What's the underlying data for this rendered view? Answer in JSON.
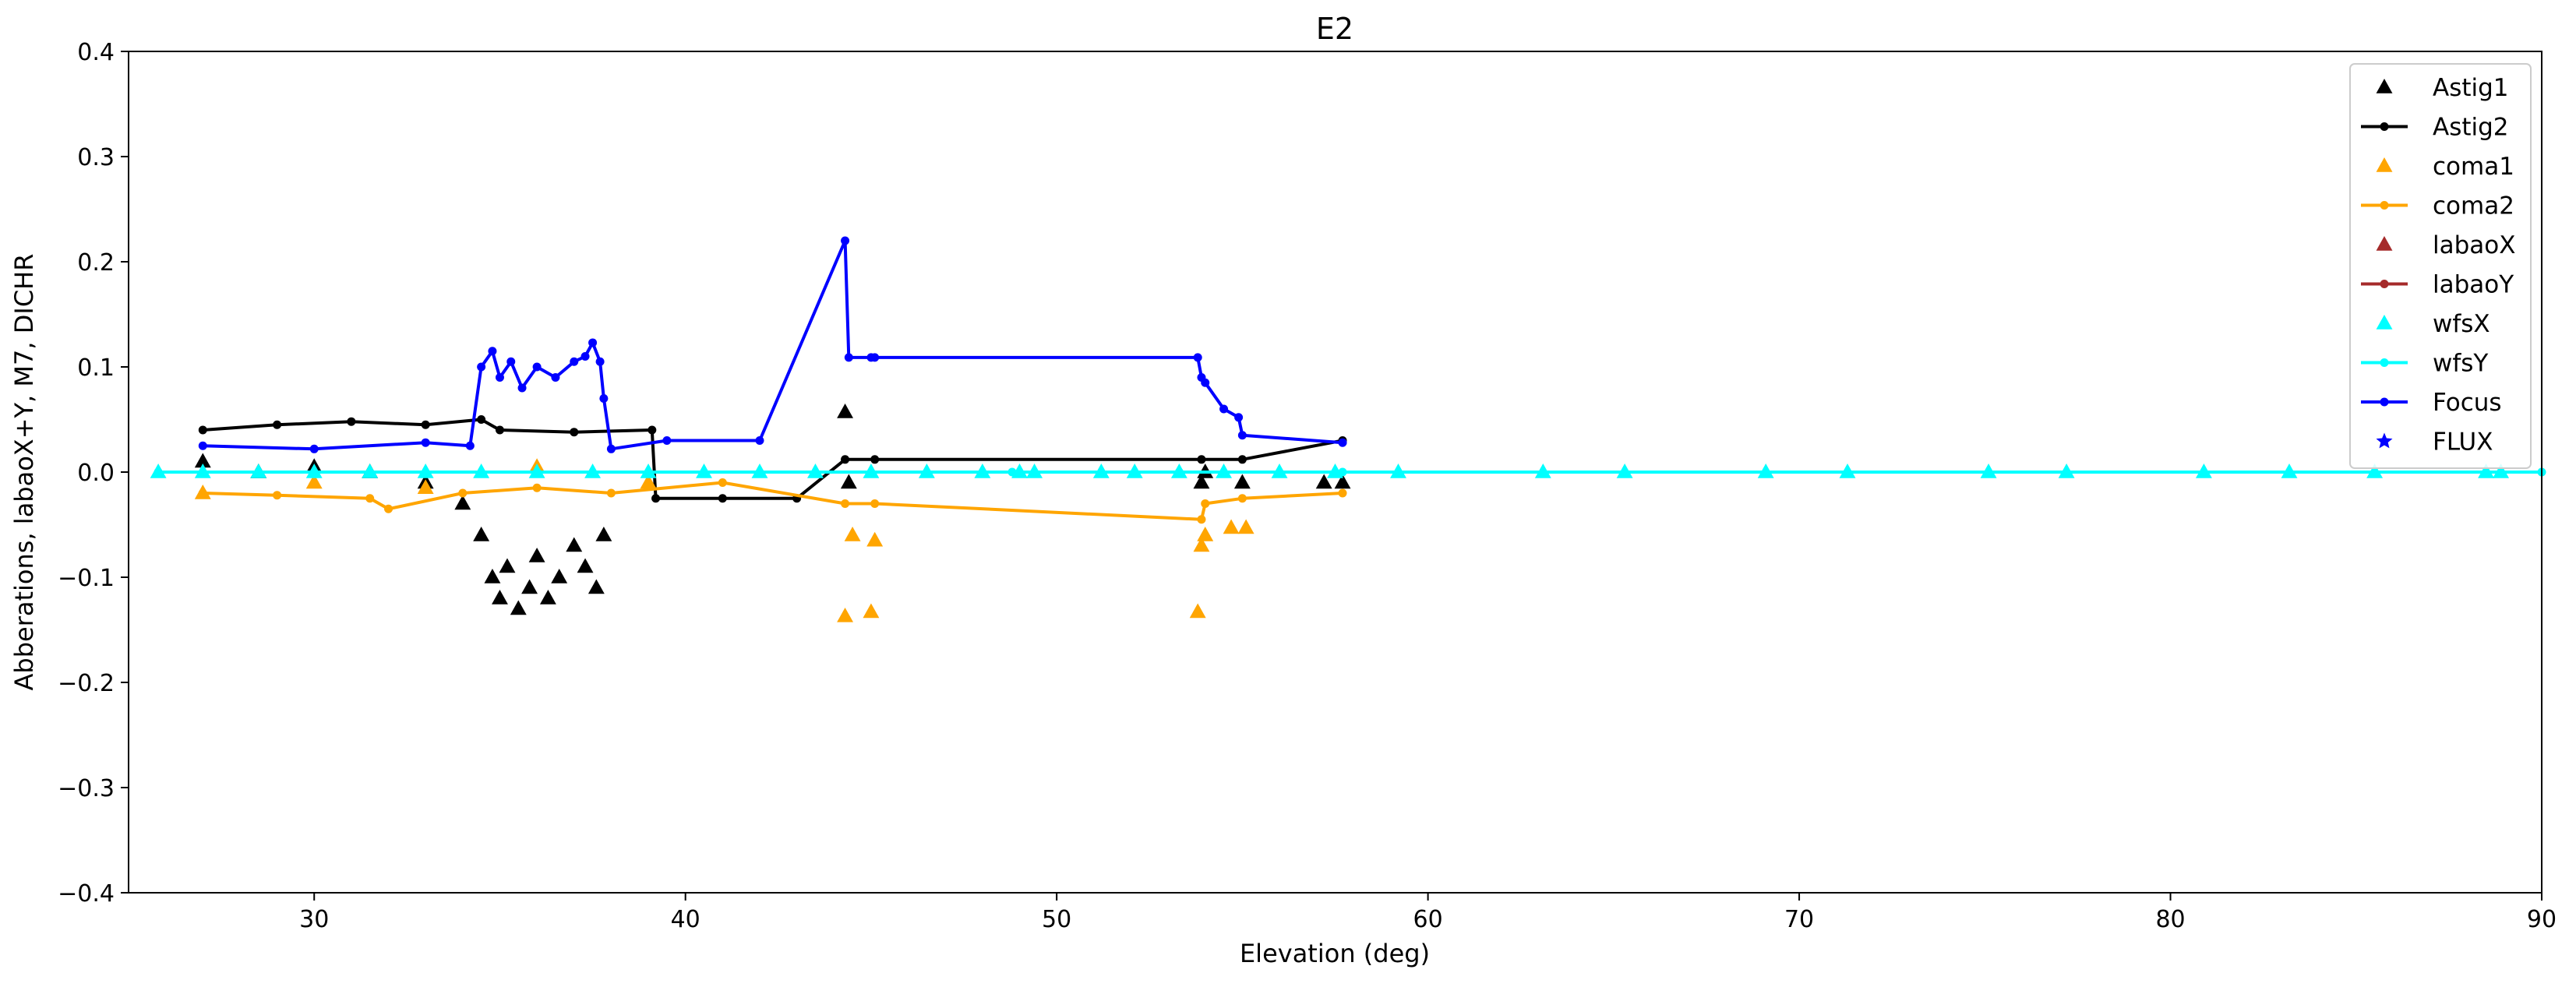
{
  "chart_data": {
    "type": "scatter",
    "title": "E2",
    "xlabel": "Elevation (deg)",
    "ylabel": "Abberations, labaoX+Y, M7, DICHR",
    "xlim": [
      25,
      90
    ],
    "ylim": [
      -0.4,
      0.4
    ],
    "xticks": [
      30,
      40,
      50,
      60,
      70,
      80,
      90
    ],
    "yticks": [
      -0.4,
      -0.3,
      -0.2,
      -0.1,
      0.0,
      0.1,
      0.2,
      0.3,
      0.4
    ],
    "ytick_labels": [
      "−0.4",
      "−0.3",
      "−0.2",
      "−0.1",
      "0.0",
      "0.1",
      "0.2",
      "0.3",
      "0.4"
    ],
    "grid": false,
    "legend_position": "top-right",
    "series": [
      {
        "name": "Astig1",
        "style": "triangle",
        "color": "#000000",
        "x": [
          27.0,
          28.5,
          30.0,
          31.5,
          33.0,
          34.0,
          34.5,
          34.8,
          35.0,
          35.2,
          35.5,
          35.8,
          36.0,
          36.3,
          36.6,
          37.0,
          37.3,
          37.6,
          37.8,
          44.3,
          44.4,
          53.9,
          54.0,
          55.0,
          57.2,
          57.7
        ],
        "y": [
          0.01,
          0.0,
          0.005,
          0.0,
          -0.01,
          -0.03,
          -0.06,
          -0.1,
          -0.12,
          -0.09,
          -0.13,
          -0.11,
          -0.08,
          -0.12,
          -0.1,
          -0.07,
          -0.09,
          -0.11,
          -0.06,
          0.057,
          -0.01,
          -0.01,
          0.0,
          -0.01,
          -0.01,
          -0.01
        ]
      },
      {
        "name": "Astig2",
        "style": "line-dot",
        "color": "#000000",
        "x": [
          27.0,
          29.0,
          31.0,
          33.0,
          34.5,
          35.0,
          37.0,
          39.1,
          39.2,
          41.0,
          43.0,
          44.3,
          45.1,
          53.9,
          55.0,
          57.7
        ],
        "y": [
          0.04,
          0.045,
          0.048,
          0.045,
          0.05,
          0.04,
          0.038,
          0.04,
          -0.025,
          -0.025,
          -0.025,
          0.012,
          0.012,
          0.012,
          0.012,
          0.03
        ]
      },
      {
        "name": "coma1",
        "style": "triangle",
        "color": "#ffa500",
        "x": [
          27.0,
          30.0,
          33.0,
          36.0,
          39.0,
          44.3,
          44.5,
          45.0,
          45.1,
          53.8,
          53.9,
          54.0,
          54.7,
          55.1
        ],
        "y": [
          -0.02,
          -0.01,
          -0.015,
          0.005,
          -0.01,
          -0.137,
          -0.06,
          -0.133,
          -0.065,
          -0.133,
          -0.07,
          -0.06,
          -0.053,
          -0.053
        ]
      },
      {
        "name": "coma2",
        "style": "line-dot",
        "color": "#ffa500",
        "x": [
          27.0,
          29.0,
          31.5,
          32.0,
          34.0,
          36.0,
          38.0,
          41.0,
          44.3,
          45.1,
          53.9,
          54.0,
          55.0,
          57.7
        ],
        "y": [
          -0.02,
          -0.022,
          -0.025,
          -0.035,
          -0.02,
          -0.015,
          -0.02,
          -0.01,
          -0.03,
          -0.03,
          -0.045,
          -0.03,
          -0.025,
          -0.02
        ]
      },
      {
        "name": "labaoX",
        "style": "triangle",
        "color": "#a52a2a",
        "x": [],
        "y": []
      },
      {
        "name": "labaoY",
        "style": "line-dot",
        "color": "#a52a2a",
        "x": [],
        "y": []
      },
      {
        "name": "wfsX",
        "style": "triangle",
        "color": "#00ffff",
        "x": [
          25.8,
          27.0,
          28.5,
          30.0,
          31.5,
          33.0,
          34.5,
          36.0,
          37.5,
          39.0,
          40.5,
          42.0,
          43.5,
          45.0,
          46.5,
          48.0,
          49.0,
          49.4,
          51.2,
          52.1,
          53.3,
          54.5,
          56.0,
          57.5,
          59.2,
          63.1,
          65.3,
          69.1,
          71.3,
          75.1,
          77.2,
          80.9,
          83.2,
          85.5,
          88.5,
          88.9
        ],
        "y": [
          0,
          0,
          0,
          0,
          0,
          0,
          0,
          0,
          0,
          0,
          0,
          0,
          0,
          0,
          0,
          0,
          0,
          0,
          0,
          0,
          0,
          0,
          0,
          0,
          0,
          0,
          0,
          0,
          0,
          0,
          0,
          0,
          0,
          0,
          0,
          0
        ]
      },
      {
        "name": "wfsY",
        "style": "line-dot",
        "color": "#00ffff",
        "x": [
          25.8,
          48.8,
          53.3,
          57.7,
          90.0
        ],
        "y": [
          0,
          0,
          0,
          0,
          0
        ]
      },
      {
        "name": "Focus",
        "style": "line-dot",
        "color": "#0000ff",
        "x": [
          27.0,
          30.0,
          33.0,
          34.2,
          34.5,
          34.8,
          35.0,
          35.3,
          35.6,
          36.0,
          36.5,
          37.0,
          37.3,
          37.5,
          37.7,
          37.8,
          38.0,
          39.5,
          42.0,
          44.3,
          44.4,
          45.0,
          45.1,
          53.8,
          53.9,
          54.0,
          54.5,
          54.9,
          55.0,
          57.7
        ],
        "y": [
          0.025,
          0.022,
          0.028,
          0.025,
          0.1,
          0.115,
          0.09,
          0.105,
          0.08,
          0.1,
          0.09,
          0.105,
          0.11,
          0.123,
          0.105,
          0.07,
          0.022,
          0.03,
          0.03,
          0.22,
          0.109,
          0.109,
          0.109,
          0.109,
          0.09,
          0.085,
          0.06,
          0.052,
          0.035,
          0.028
        ]
      },
      {
        "name": "FLUX",
        "style": "star",
        "color": "#0000ff",
        "x": [],
        "y": []
      }
    ]
  }
}
